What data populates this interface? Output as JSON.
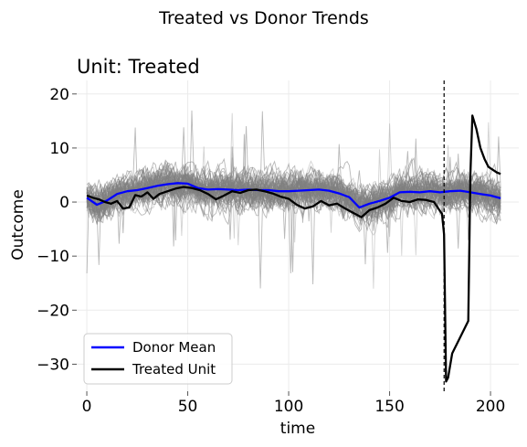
{
  "figure": {
    "suptitle": "Treated vs Donor Trends"
  },
  "chart_data": {
    "type": "line",
    "title": "Unit: Treated",
    "xlabel": "time",
    "ylabel": "Outcome",
    "xlim": [
      -5,
      214
    ],
    "ylim": [
      -35,
      22.5
    ],
    "xticks": [
      0,
      50,
      100,
      150,
      200
    ],
    "yticks": [
      20,
      10,
      0,
      -10,
      -20,
      -30
    ],
    "xtick_labels": [
      "0",
      "50",
      "100",
      "150",
      "200"
    ],
    "ytick_labels": [
      "20",
      "10",
      "0",
      "−10",
      "−20",
      "−30"
    ],
    "grid": true,
    "legend_position": "lower-left",
    "intervention_time": 177,
    "donor_lines": {
      "count": 60,
      "color": "#808080",
      "description_note": "many grey individual donor series fluctuating around 0 within roughly -10 to 10, with occasional spikes to about 20 and dips to about -16"
    },
    "series": [
      {
        "name": "Donor Mean",
        "color": "#0000ff",
        "x": [
          0,
          5,
          10,
          15,
          20,
          25,
          30,
          35,
          40,
          45,
          50,
          55,
          60,
          65,
          70,
          75,
          80,
          85,
          90,
          95,
          100,
          105,
          110,
          115,
          120,
          125,
          130,
          135,
          140,
          145,
          150,
          155,
          160,
          165,
          170,
          175,
          180,
          185,
          190,
          195,
          200,
          205
        ],
        "y": [
          0.8,
          -0.5,
          0.3,
          1.5,
          2.0,
          2.2,
          2.6,
          3.0,
          3.3,
          3.5,
          3.4,
          2.6,
          2.3,
          2.4,
          2.3,
          2.2,
          2.3,
          2.2,
          2.2,
          2.0,
          2.0,
          2.1,
          2.2,
          2.3,
          2.1,
          1.6,
          0.9,
          -1.0,
          -0.3,
          0.2,
          0.8,
          1.8,
          1.9,
          1.8,
          2.0,
          1.8,
          2.0,
          2.1,
          1.8,
          1.5,
          1.2,
          0.7
        ]
      },
      {
        "name": "Treated Unit",
        "color": "#000000",
        "x": [
          0,
          3,
          6,
          9,
          12,
          15,
          18,
          21,
          24,
          27,
          30,
          33,
          36,
          40,
          44,
          48,
          52,
          56,
          60,
          64,
          68,
          72,
          76,
          80,
          84,
          88,
          92,
          96,
          100,
          104,
          108,
          112,
          116,
          120,
          124,
          128,
          132,
          136,
          140,
          144,
          148,
          152,
          156,
          160,
          164,
          168,
          172,
          176,
          177,
          178,
          179,
          181,
          183,
          185,
          187,
          189,
          190,
          191,
          193,
          195,
          197,
          199,
          201,
          203,
          205
        ],
        "y": [
          1.2,
          0.8,
          0.5,
          0.0,
          -0.3,
          0.2,
          -1.2,
          -1.0,
          1.3,
          1.0,
          1.8,
          0.6,
          1.5,
          2.0,
          2.5,
          2.8,
          2.6,
          2.2,
          1.5,
          0.5,
          1.2,
          2.0,
          1.7,
          2.2,
          2.3,
          2.0,
          1.6,
          1.0,
          0.6,
          -0.5,
          -1.2,
          -0.8,
          0.2,
          -0.6,
          -0.3,
          -1.2,
          -2.0,
          -2.8,
          -1.5,
          -1.0,
          -0.3,
          0.8,
          0.2,
          0.0,
          0.5,
          0.4,
          0.0,
          -2.2,
          -6.0,
          -33.2,
          -32.5,
          -28.0,
          -26.5,
          -25.0,
          -23.5,
          -22.0,
          5.0,
          16.0,
          13.5,
          10.0,
          8.0,
          6.5,
          6.0,
          5.5,
          5.2
        ]
      }
    ],
    "legend": [
      {
        "label": "Donor Mean",
        "color": "#0000ff"
      },
      {
        "label": "Treated Unit",
        "color": "#000000"
      }
    ]
  }
}
